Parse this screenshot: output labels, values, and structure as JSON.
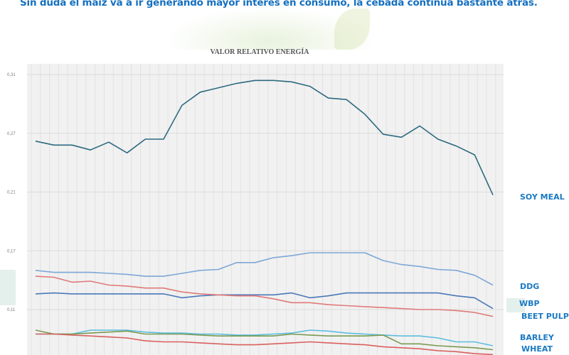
{
  "headline": "Sin duda el maiz va a ir generando mayor interés en consumo, la cebada continua bastante atrás.",
  "chart_data": {
    "type": "line",
    "title": "VALOR RELATIVO ENERGÍA",
    "xlabel": "",
    "ylabel": "",
    "y_ticks": [
      "0,31",
      "0,27",
      "0,21",
      "0,17",
      "0,11"
    ],
    "y_tick_values": [
      0.31,
      0.27,
      0.21,
      0.17,
      0.11
    ],
    "grid": true,
    "legend": "right, inline labels",
    "point_count": 26,
    "series": [
      {
        "name": "SOY MEAL",
        "color": "#2d6a80",
        "values": [
          0.262,
          0.258,
          0.258,
          0.253,
          0.261,
          0.25,
          0.264,
          0.264,
          0.289,
          0.298,
          0.301,
          0.304,
          0.306,
          0.306,
          0.305,
          0.302,
          0.294,
          0.293,
          0.283,
          0.269,
          0.266,
          0.275,
          0.264,
          0.257,
          0.248,
          0.208
        ]
      },
      {
        "name": "DDG",
        "color": "#7ea7d6",
        "values": [
          0.15,
          0.148,
          0.148,
          0.148,
          0.147,
          0.146,
          0.144,
          0.144,
          0.147,
          0.15,
          0.151,
          0.158,
          0.158,
          0.163,
          0.165,
          0.168,
          0.168,
          0.168,
          0.168,
          0.16,
          0.156,
          0.154,
          0.151,
          0.15,
          0.145,
          0.135
        ]
      },
      {
        "name": "WBP",
        "color": "#4a78b8",
        "values": [
          0.126,
          0.127,
          0.126,
          0.126,
          0.126,
          0.126,
          0.126,
          0.126,
          0.122,
          0.124,
          0.125,
          0.125,
          0.125,
          0.125,
          0.127,
          0.122,
          0.124,
          0.127,
          0.127,
          0.127,
          0.127,
          0.127,
          0.127,
          0.124,
          0.122,
          0.111
        ]
      },
      {
        "name": "BEET PULP",
        "color": "#e07a78",
        "values": [
          0.144,
          0.143,
          0.138,
          0.139,
          0.135,
          0.134,
          0.132,
          0.132,
          0.128,
          0.126,
          0.125,
          0.124,
          0.124,
          0.121,
          0.117,
          0.117,
          0.115,
          0.114,
          0.113,
          0.112,
          0.111,
          0.11,
          0.11,
          0.109,
          0.107,
          0.103
        ]
      },
      {
        "name": "BARLEY",
        "color": "#5bbde0",
        "values": [
          0.085,
          0.085,
          0.085,
          0.089,
          0.089,
          0.089,
          0.087,
          0.086,
          0.086,
          0.085,
          0.085,
          0.084,
          0.084,
          0.085,
          0.086,
          0.089,
          0.088,
          0.086,
          0.085,
          0.084,
          0.083,
          0.083,
          0.081,
          0.077,
          0.077,
          0.073
        ]
      },
      {
        "name": "WHEAT",
        "color": "#7a9a50",
        "values": [
          0.089,
          0.085,
          0.085,
          0.086,
          0.087,
          0.088,
          0.085,
          0.085,
          0.085,
          0.084,
          0.083,
          0.083,
          0.083,
          0.083,
          0.085,
          0.084,
          0.083,
          0.083,
          0.083,
          0.084,
          0.075,
          0.075,
          0.073,
          0.072,
          0.071,
          0.069
        ]
      },
      {
        "name": "",
        "color": "#d9605e",
        "values": [
          0.085,
          0.085,
          0.084,
          0.083,
          0.082,
          0.081,
          0.078,
          0.077,
          0.077,
          0.076,
          0.075,
          0.074,
          0.074,
          0.075,
          0.076,
          0.077,
          0.076,
          0.075,
          0.074,
          0.072,
          0.071,
          0.07,
          0.068,
          0.067,
          0.065,
          0.064
        ]
      }
    ]
  }
}
